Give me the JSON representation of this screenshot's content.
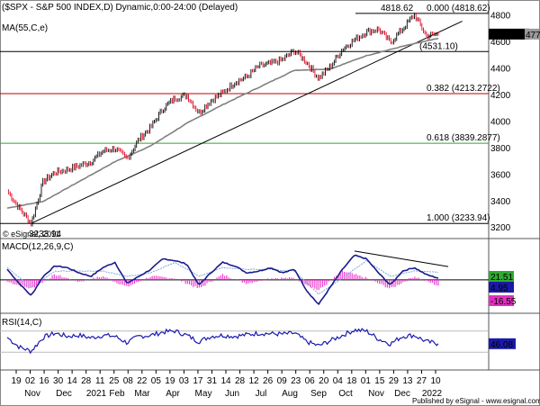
{
  "header": {
    "title": "($SPX - S&P 500 INDEX,D) Dynamic,0:00-24:00 (Delayed)",
    "ma_label": "MA(55,C,e)"
  },
  "colors": {
    "price_up": "#000000",
    "price_down": "#e0001b",
    "ma": "#808080",
    "fib_red": "#c00000",
    "fib_green": "#2ea82e",
    "macd_line": "#1a1a8c",
    "signal_line": "#7fa8d8",
    "hist": "#ee33cc",
    "rsi": "#1a1ab0",
    "badge_blue": "#1a1aa8",
    "badge_green": "#2eaa2e",
    "badge_magenta": "#e030c0"
  },
  "chart_data": {
    "type": "line",
    "price_axis": {
      "ticks": [
        3200,
        3400,
        3600,
        3800,
        4000,
        4200,
        4400,
        4600,
        4800
      ],
      "range": [
        3120,
        4920
      ]
    },
    "x_axis": {
      "day_labels": [
        "19",
        "02",
        "16",
        "30",
        "14",
        "28",
        "11",
        "25",
        "08",
        "22",
        "05",
        "19",
        "03",
        "17",
        "31",
        "14",
        "28",
        "12",
        "26",
        "09",
        "23",
        "06",
        "20",
        "04",
        "18",
        "01",
        "15",
        "29",
        "13",
        "27",
        "10"
      ],
      "month_labels": [
        "Nov",
        "Dec",
        "2021",
        "Feb",
        "Mar",
        "Apr",
        "May",
        "Jun",
        "Jul",
        "Aug",
        "Sep",
        "Oct",
        "Nov",
        "Dec",
        "2022"
      ]
    },
    "price_series_anchors": [
      [
        0,
        3480
      ],
      [
        1,
        3350
      ],
      [
        2,
        3233.94
      ],
      [
        3,
        3550
      ],
      [
        4,
        3620
      ],
      [
        5,
        3640
      ],
      [
        6,
        3670
      ],
      [
        7,
        3700
      ],
      [
        8,
        3780
      ],
      [
        9,
        3800
      ],
      [
        10,
        3720
      ],
      [
        11,
        3870
      ],
      [
        12,
        3960
      ],
      [
        13,
        4100
      ],
      [
        14,
        4180
      ],
      [
        15,
        4200
      ],
      [
        16,
        4070
      ],
      [
        17,
        4160
      ],
      [
        18,
        4220
      ],
      [
        19,
        4300
      ],
      [
        20,
        4340
      ],
      [
        21,
        4420
      ],
      [
        22,
        4440
      ],
      [
        23,
        4470
      ],
      [
        24,
        4540
      ],
      [
        25,
        4450
      ],
      [
        26,
        4330
      ],
      [
        27,
        4420
      ],
      [
        28,
        4550
      ],
      [
        29,
        4620
      ],
      [
        30,
        4680
      ],
      [
        31,
        4700
      ],
      [
        32,
        4600
      ],
      [
        33,
        4700
      ],
      [
        34,
        4810
      ],
      [
        35,
        4650
      ],
      [
        36,
        4662.85
      ]
    ],
    "ma55_anchors": [
      [
        0,
        3350
      ],
      [
        3,
        3400
      ],
      [
        6,
        3550
      ],
      [
        9,
        3700
      ],
      [
        12,
        3820
      ],
      [
        15,
        3990
      ],
      [
        18,
        4130
      ],
      [
        21,
        4260
      ],
      [
        24,
        4390
      ],
      [
        27,
        4400
      ],
      [
        30,
        4500
      ],
      [
        33,
        4570
      ],
      [
        36,
        4630
      ]
    ],
    "trendline": {
      "from": [
        2,
        3233.94
      ],
      "to": [
        38,
        4760
      ]
    },
    "levels": [
      {
        "label": "0.000 (4818.62)",
        "value": 4818.62
      },
      {
        "label": "(4531.10)",
        "value": 4531.1
      },
      {
        "label": "0.382 (4213.2722)",
        "value": 4213.2722
      },
      {
        "label": "0.618 (3839.2877)",
        "value": 3839.2877
      },
      {
        "label": "1.000 (3233.94)",
        "value": 3233.94
      }
    ],
    "annotations": {
      "high": "4818.62",
      "low": "3233.94",
      "watermark": "© eSignal, 2011"
    },
    "price_badges": {
      "last": "4662.85",
      "side": "477"
    },
    "macd": {
      "label": "MACD(12,26,9,C)",
      "macd_anchors": [
        [
          0,
          30
        ],
        [
          1,
          -10
        ],
        [
          2,
          -45
        ],
        [
          3,
          10
        ],
        [
          4,
          40
        ],
        [
          5,
          35
        ],
        [
          6,
          20
        ],
        [
          7,
          10
        ],
        [
          8,
          35
        ],
        [
          9,
          50
        ],
        [
          10,
          -10
        ],
        [
          11,
          10
        ],
        [
          12,
          30
        ],
        [
          13,
          60
        ],
        [
          14,
          55
        ],
        [
          15,
          45
        ],
        [
          16,
          -15
        ],
        [
          17,
          20
        ],
        [
          18,
          50
        ],
        [
          19,
          40
        ],
        [
          20,
          20
        ],
        [
          21,
          25
        ],
        [
          22,
          35
        ],
        [
          23,
          20
        ],
        [
          24,
          30
        ],
        [
          25,
          -30
        ],
        [
          26,
          -70
        ],
        [
          27,
          -20
        ],
        [
          28,
          30
        ],
        [
          29,
          70
        ],
        [
          30,
          60
        ],
        [
          31,
          20
        ],
        [
          32,
          -15
        ],
        [
          33,
          25
        ],
        [
          34,
          35
        ],
        [
          35,
          15
        ],
        [
          36,
          4.95
        ]
      ],
      "signal_anchors": [
        [
          0,
          35
        ],
        [
          2,
          -20
        ],
        [
          4,
          25
        ],
        [
          6,
          25
        ],
        [
          8,
          25
        ],
        [
          10,
          10
        ],
        [
          12,
          20
        ],
        [
          14,
          50
        ],
        [
          16,
          10
        ],
        [
          18,
          35
        ],
        [
          20,
          30
        ],
        [
          22,
          30
        ],
        [
          24,
          25
        ],
        [
          26,
          -40
        ],
        [
          28,
          5
        ],
        [
          30,
          55
        ],
        [
          32,
          10
        ],
        [
          34,
          25
        ],
        [
          36,
          21.51
        ]
      ],
      "hist_anchors": [
        [
          0,
          -5
        ],
        [
          2,
          -25
        ],
        [
          4,
          15
        ],
        [
          6,
          -5
        ],
        [
          8,
          10
        ],
        [
          10,
          -20
        ],
        [
          12,
          10
        ],
        [
          14,
          5
        ],
        [
          16,
          -25
        ],
        [
          18,
          15
        ],
        [
          20,
          -10
        ],
        [
          22,
          5
        ],
        [
          24,
          5
        ],
        [
          26,
          -30
        ],
        [
          28,
          25
        ],
        [
          30,
          5
        ],
        [
          32,
          -25
        ],
        [
          34,
          10
        ],
        [
          36,
          -16.55
        ]
      ],
      "range": [
        -90,
        110
      ],
      "values": [
        "21.51",
        "4.95",
        "-16.55"
      ],
      "divergence_line": {
        "from": [
          29,
          82
        ],
        "to": [
          38,
          38
        ]
      }
    },
    "rsi": {
      "label": "RSI(14,C)",
      "anchors": [
        [
          0,
          58
        ],
        [
          1,
          40
        ],
        [
          2,
          32
        ],
        [
          3,
          58
        ],
        [
          4,
          66
        ],
        [
          5,
          60
        ],
        [
          6,
          62
        ],
        [
          7,
          57
        ],
        [
          8,
          62
        ],
        [
          9,
          60
        ],
        [
          10,
          48
        ],
        [
          11,
          60
        ],
        [
          12,
          62
        ],
        [
          13,
          68
        ],
        [
          14,
          70
        ],
        [
          15,
          62
        ],
        [
          16,
          50
        ],
        [
          17,
          60
        ],
        [
          18,
          62
        ],
        [
          19,
          60
        ],
        [
          20,
          63
        ],
        [
          21,
          66
        ],
        [
          22,
          65
        ],
        [
          23,
          64
        ],
        [
          24,
          66
        ],
        [
          25,
          50
        ],
        [
          26,
          42
        ],
        [
          27,
          52
        ],
        [
          28,
          62
        ],
        [
          29,
          72
        ],
        [
          30,
          70
        ],
        [
          31,
          55
        ],
        [
          32,
          46
        ],
        [
          33,
          60
        ],
        [
          34,
          62
        ],
        [
          35,
          50
        ],
        [
          36,
          46.08
        ]
      ],
      "range": [
        0,
        100
      ],
      "value": "46.08"
    },
    "footer": "Published by eSignal - www.esignal.com"
  }
}
